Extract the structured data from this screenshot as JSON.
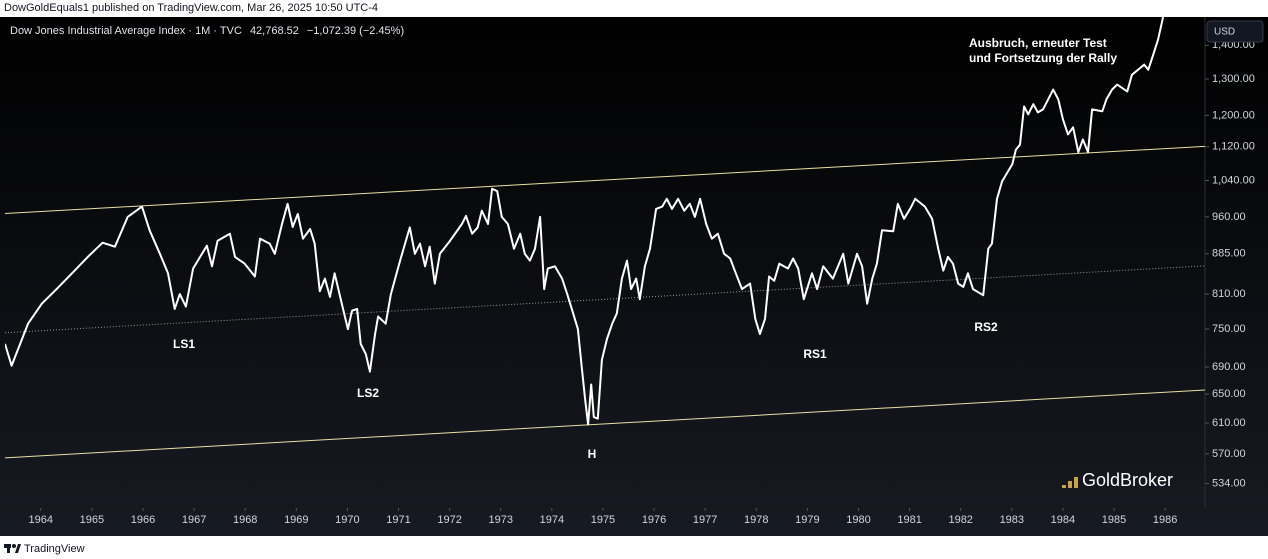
{
  "header": {
    "publisher": "DowGoldEquals1 published on TradingView.com, Mar 26, 2025 10:50 UTC-4"
  },
  "chart_data": {
    "type": "line",
    "title": "Dow Jones Industrial Average Index · 1M · TVC",
    "last_price": "42,768.52",
    "change": "−1,072.39 (−2.45%)",
    "currency": "USD",
    "color": "#ffffff",
    "log_scale": true,
    "grid": false,
    "x": [
      1963.3,
      1963.43,
      1963.75,
      1964.02,
      1964.31,
      1964.61,
      1964.92,
      1965.21,
      1965.45,
      1965.7,
      1965.98,
      1966.13,
      1966.33,
      1966.49,
      1966.62,
      1966.72,
      1966.84,
      1966.98,
      1967.25,
      1967.35,
      1967.46,
      1967.7,
      1967.8,
      1967.99,
      1968.19,
      1968.29,
      1968.48,
      1968.58,
      1968.72,
      1968.83,
      1968.93,
      1969.03,
      1969.13,
      1969.27,
      1969.36,
      1969.46,
      1969.56,
      1969.66,
      1969.75,
      1969.89,
      1970.01,
      1970.09,
      1970.19,
      1970.26,
      1970.36,
      1970.44,
      1970.54,
      1970.6,
      1970.75,
      1970.85,
      1971.03,
      1971.22,
      1971.32,
      1971.42,
      1971.52,
      1971.61,
      1971.71,
      1971.81,
      1972.01,
      1972.24,
      1972.32,
      1972.44,
      1972.55,
      1972.63,
      1972.75,
      1972.83,
      1972.93,
      1973.02,
      1973.14,
      1973.26,
      1973.38,
      1973.47,
      1973.57,
      1973.67,
      1973.77,
      1973.85,
      1973.92,
      1974.06,
      1974.2,
      1974.3,
      1974.39,
      1974.51,
      1974.59,
      1974.65,
      1974.71,
      1974.77,
      1974.82,
      1974.9,
      1974.98,
      1975.08,
      1975.18,
      1975.27,
      1975.37,
      1975.47,
      1975.55,
      1975.65,
      1975.72,
      1975.82,
      1975.92,
      1976.04,
      1976.16,
      1976.25,
      1976.35,
      1976.47,
      1976.59,
      1976.7,
      1976.8,
      1976.9,
      1977.02,
      1977.13,
      1977.25,
      1977.37,
      1977.49,
      1977.6,
      1977.72,
      1977.88,
      1977.98,
      1978.07,
      1978.17,
      1978.25,
      1978.35,
      1978.45,
      1978.62,
      1978.72,
      1978.82,
      1978.93,
      1979.09,
      1979.19,
      1979.31,
      1979.5,
      1979.7,
      1979.8,
      1979.97,
      1980.07,
      1980.17,
      1980.27,
      1980.36,
      1980.46,
      1980.68,
      1980.77,
      1980.89,
      1981.01,
      1981.11,
      1981.3,
      1981.44,
      1981.56,
      1981.66,
      1981.75,
      1981.85,
      1981.95,
      1982.05,
      1982.14,
      1982.24,
      1982.44,
      1982.54,
      1982.61,
      1982.71,
      1982.81,
      1983.01,
      1983.08,
      1983.16,
      1983.24,
      1983.32,
      1983.42,
      1983.51,
      1983.61,
      1983.81,
      1983.91,
      1984.0,
      1984.1,
      1984.2,
      1984.3,
      1984.39,
      1984.49,
      1984.57,
      1984.77,
      1984.85,
      1984.96,
      1985.06,
      1985.26,
      1985.35,
      1985.59,
      1985.67,
      1985.77,
      1985.86,
      1985.96
    ],
    "values": [
      726,
      692,
      759,
      793,
      819,
      848,
      879,
      907,
      899,
      960,
      982,
      932,
      885,
      848,
      784,
      810,
      788,
      857,
      901,
      861,
      911,
      925,
      879,
      866,
      842,
      915,
      905,
      885,
      945,
      988,
      939,
      966,
      915,
      935,
      905,
      815,
      838,
      805,
      848,
      793,
      750,
      781,
      784,
      726,
      710,
      683,
      741,
      771,
      759,
      810,
      872,
      938,
      885,
      905,
      861,
      899,
      829,
      885,
      911,
      945,
      962,
      925,
      938,
      973,
      945,
      1021,
      1016,
      960,
      945,
      895,
      925,
      885,
      872,
      895,
      960,
      819,
      857,
      861,
      838,
      810,
      784,
      750,
      686,
      643,
      608,
      664,
      618,
      616,
      701,
      734,
      759,
      776,
      838,
      872,
      819,
      838,
      801,
      861,
      895,
      977,
      982,
      999,
      977,
      999,
      973,
      988,
      960,
      999,
      945,
      915,
      925,
      885,
      876,
      848,
      819,
      829,
      767,
      742,
      767,
      842,
      834,
      866,
      857,
      876,
      857,
      801,
      848,
      819,
      861,
      838,
      885,
      829,
      885,
      861,
      793,
      838,
      866,
      932,
      930,
      988,
      956,
      977,
      999,
      982,
      956,
      895,
      853,
      879,
      866,
      829,
      823,
      848,
      819,
      808,
      895,
      905,
      999,
      1038,
      1078,
      1113,
      1125,
      1224,
      1203,
      1230,
      1208,
      1216,
      1270,
      1243,
      1190,
      1151,
      1169,
      1107,
      1138,
      1107,
      1216,
      1211,
      1243,
      1270,
      1284,
      1265,
      1312,
      1342,
      1327,
      1373,
      1417,
      1490
    ],
    "xlim": [
      1963.3,
      1986.78
    ],
    "xticks": [
      1964,
      1965,
      1966,
      1967,
      1968,
      1969,
      1970,
      1971,
      1972,
      1973,
      1974,
      1975,
      1976,
      1977,
      1978,
      1979,
      1980,
      1981,
      1982,
      1983,
      1984,
      1985,
      1986
    ],
    "ylim": [
      506,
      1490
    ],
    "yticks": [
      {
        "value": 534,
        "label": "534.00"
      },
      {
        "value": 570,
        "label": "570.00"
      },
      {
        "value": 610,
        "label": "610.00"
      },
      {
        "value": 650,
        "label": "650.00"
      },
      {
        "value": 690,
        "label": "690.00"
      },
      {
        "value": 750,
        "label": "750.00"
      },
      {
        "value": 810,
        "label": "810.00"
      },
      {
        "value": 885,
        "label": "885.00"
      },
      {
        "value": 960,
        "label": "960.00"
      },
      {
        "value": 1040,
        "label": "1,040.00"
      },
      {
        "value": 1120,
        "label": "1,120.00"
      },
      {
        "value": 1200,
        "label": "1,200.00"
      },
      {
        "value": 1300,
        "label": "1,300.00"
      },
      {
        "value": 1400,
        "label": "1,400.00"
      }
    ],
    "trendlines": [
      {
        "x": [
          1963.3,
          1986.78
        ],
        "values": [
          967,
          1121
        ],
        "color": "#e9dfa8",
        "dashed": false
      },
      {
        "x": [
          1963.3,
          1986.78
        ],
        "values": [
          744,
          862
        ],
        "color": "#9a9a9a",
        "dashed": true
      },
      {
        "x": [
          1963.3,
          1986.78
        ],
        "values": [
          565,
          656
        ],
        "color": "#e9dfa8",
        "dashed": false
      }
    ],
    "annotations": [
      "LS1",
      "LS2",
      "H",
      "RS1",
      "RS2",
      "Ausbruch, erneuter Test",
      "und Fortsetzung der Rally"
    ]
  },
  "watermark": "GoldBroker",
  "footer": "TradingView"
}
